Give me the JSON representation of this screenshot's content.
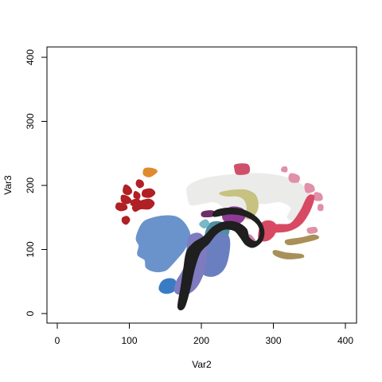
{
  "chart_data": {
    "type": "scatter",
    "title": "",
    "xlabel": "Var2",
    "ylabel": "Var3",
    "xlim": [
      0,
      400
    ],
    "ylim": [
      0,
      400
    ],
    "xticks": [
      0,
      100,
      200,
      300,
      400
    ],
    "yticks": [
      0,
      100,
      200,
      300,
      400
    ],
    "grid": false,
    "legend": "none",
    "regions": [
      {
        "name": "region-orange",
        "color": "#e08a2e",
        "points": [
          [
            122,
            226
          ],
          [
            132,
            226
          ],
          [
            138,
            222
          ],
          [
            132,
            216
          ],
          [
            126,
            214
          ],
          [
            120,
            218
          ]
        ]
      },
      {
        "name": "region-red-1",
        "color": "#b02024",
        "points": [
          [
            94,
            200
          ],
          [
            100,
            197
          ],
          [
            103,
            190
          ],
          [
            98,
            186
          ],
          [
            92,
            190
          ]
        ]
      },
      {
        "name": "region-red-2",
        "color": "#b02024",
        "points": [
          [
            112,
            208
          ],
          [
            118,
            206
          ],
          [
            119,
            200
          ],
          [
            114,
            197
          ],
          [
            110,
            202
          ]
        ]
      },
      {
        "name": "region-red-3",
        "color": "#b02024",
        "points": [
          [
            90,
            184
          ],
          [
            98,
            182
          ],
          [
            102,
            176
          ],
          [
            97,
            172
          ],
          [
            90,
            175
          ]
        ]
      },
      {
        "name": "region-red-4",
        "color": "#b02024",
        "points": [
          [
            84,
            172
          ],
          [
            94,
            170
          ],
          [
            96,
            164
          ],
          [
            88,
            161
          ],
          [
            82,
            165
          ]
        ]
      },
      {
        "name": "region-red-5",
        "color": "#b02024",
        "points": [
          [
            108,
            190
          ],
          [
            114,
            186
          ],
          [
            113,
            180
          ],
          [
            107,
            182
          ]
        ]
      },
      {
        "name": "region-red-6",
        "color": "#b02024",
        "points": [
          [
            120,
            192
          ],
          [
            130,
            194
          ],
          [
            135,
            188
          ],
          [
            128,
            182
          ],
          [
            119,
            184
          ]
        ]
      },
      {
        "name": "region-red-7",
        "color": "#b02024",
        "points": [
          [
            104,
            176
          ],
          [
            112,
            178
          ],
          [
            116,
            172
          ],
          [
            110,
            168
          ],
          [
            103,
            170
          ]
        ]
      },
      {
        "name": "region-red-8",
        "color": "#b02024",
        "points": [
          [
            118,
            176
          ],
          [
            128,
            178
          ],
          [
            134,
            172
          ],
          [
            128,
            164
          ],
          [
            116,
            164
          ],
          [
            108,
            160
          ],
          [
            105,
            166
          ],
          [
            112,
            172
          ]
        ]
      },
      {
        "name": "region-red-9",
        "color": "#b02024",
        "points": [
          [
            91,
            149
          ],
          [
            97,
            151
          ],
          [
            100,
            146
          ],
          [
            96,
            140
          ],
          [
            91,
            143
          ]
        ]
      },
      {
        "name": "region-white-matter",
        "color": "#ebebe9",
        "points": [
          [
            182,
            198
          ],
          [
            204,
            210
          ],
          [
            240,
            216
          ],
          [
            280,
            218
          ],
          [
            310,
            214
          ],
          [
            334,
            204
          ],
          [
            350,
            188
          ],
          [
            353,
            170
          ],
          [
            345,
            156
          ],
          [
            330,
            147
          ],
          [
            320,
            150
          ],
          [
            325,
            165
          ],
          [
            310,
            175
          ],
          [
            288,
            172
          ],
          [
            270,
            172
          ],
          [
            260,
            158
          ],
          [
            245,
            155
          ],
          [
            232,
            166
          ],
          [
            218,
            175
          ],
          [
            200,
            172
          ],
          [
            186,
            170
          ],
          [
            182,
            180
          ]
        ]
      },
      {
        "name": "region-olive",
        "color": "#c8c281",
        "points": [
          [
            226,
            188
          ],
          [
            244,
            192
          ],
          [
            262,
            192
          ],
          [
            275,
            184
          ],
          [
            278,
            165
          ],
          [
            270,
            150
          ],
          [
            262,
            150
          ],
          [
            264,
            165
          ],
          [
            260,
            178
          ],
          [
            250,
            184
          ],
          [
            235,
            184
          ]
        ]
      },
      {
        "name": "region-magenta",
        "color": "#8e3b97",
        "points": [
          [
            232,
            160
          ],
          [
            244,
            166
          ],
          [
            258,
            162
          ],
          [
            260,
            150
          ],
          [
            250,
            140
          ],
          [
            236,
            142
          ],
          [
            230,
            150
          ]
        ]
      },
      {
        "name": "region-plum",
        "color": "#6d2e6a",
        "points": [
          [
            202,
            158
          ],
          [
            214,
            160
          ],
          [
            222,
            156
          ],
          [
            214,
            152
          ],
          [
            202,
            152
          ]
        ]
      },
      {
        "name": "region-pink-small",
        "color": "#d07fae",
        "points": [
          [
            262,
            120
          ],
          [
            266,
            112
          ],
          [
            272,
            108
          ],
          [
            275,
            112
          ],
          [
            268,
            122
          ]
        ]
      },
      {
        "name": "region-pink-top",
        "color": "#d0506b",
        "points": [
          [
            248,
            232
          ],
          [
            264,
            232
          ],
          [
            265,
            220
          ],
          [
            250,
            218
          ],
          [
            247,
            226
          ]
        ]
      },
      {
        "name": "region-pink-dot",
        "color": "#e090a8",
        "points": [
          [
            313,
            228
          ],
          [
            318,
            228
          ],
          [
            318,
            222
          ],
          [
            312,
            223
          ]
        ]
      },
      {
        "name": "region-rose-1",
        "color": "#e090a8",
        "points": [
          [
            325,
            218
          ],
          [
            335,
            214
          ],
          [
            334,
            206
          ],
          [
            325,
            206
          ],
          [
            322,
            212
          ]
        ]
      },
      {
        "name": "region-rose-2",
        "color": "#e090a8",
        "points": [
          [
            345,
            202
          ],
          [
            354,
            200
          ],
          [
            356,
            192
          ],
          [
            346,
            190
          ]
        ]
      },
      {
        "name": "region-rose-3",
        "color": "#e090a8",
        "points": [
          [
            358,
            188
          ],
          [
            366,
            186
          ],
          [
            367,
            178
          ],
          [
            358,
            178
          ]
        ]
      },
      {
        "name": "region-rose-4",
        "color": "#e090a8",
        "points": [
          [
            363,
            169
          ],
          [
            368,
            169
          ],
          [
            368,
            162
          ],
          [
            363,
            162
          ]
        ]
      },
      {
        "name": "region-rose-5",
        "color": "#e090a8",
        "points": [
          [
            348,
            132
          ],
          [
            358,
            134
          ],
          [
            360,
            128
          ],
          [
            350,
            126
          ]
        ]
      },
      {
        "name": "region-crimson-1",
        "color": "#d84a63",
        "points": [
          [
            284,
            140
          ],
          [
            296,
            144
          ],
          [
            304,
            136
          ],
          [
            300,
            122
          ],
          [
            290,
            114
          ],
          [
            280,
            118
          ]
        ]
      },
      {
        "name": "region-crimson-2",
        "color": "#d84a63",
        "points": [
          [
            300,
            128
          ],
          [
            322,
            130
          ],
          [
            338,
            140
          ],
          [
            350,
            160
          ],
          [
            356,
            182
          ],
          [
            348,
            182
          ],
          [
            338,
            160
          ],
          [
            324,
            140
          ],
          [
            304,
            138
          ]
        ]
      },
      {
        "name": "region-tan-1",
        "color": "#a89058",
        "points": [
          [
            318,
            114
          ],
          [
            340,
            118
          ],
          [
            356,
            122
          ],
          [
            362,
            118
          ],
          [
            344,
            112
          ],
          [
            322,
            108
          ]
        ]
      },
      {
        "name": "region-tan-2",
        "color": "#a89058",
        "points": [
          [
            302,
            98
          ],
          [
            318,
            94
          ],
          [
            338,
            92
          ],
          [
            340,
            88
          ],
          [
            318,
            86
          ],
          [
            302,
            92
          ]
        ]
      },
      {
        "name": "region-cerebellum",
        "color": "#6b93cb",
        "points": [
          [
            118,
            140
          ],
          [
            130,
            148
          ],
          [
            150,
            152
          ],
          [
            166,
            150
          ],
          [
            178,
            138
          ],
          [
            184,
            120
          ],
          [
            176,
            100
          ],
          [
            166,
            86
          ],
          [
            158,
            76
          ],
          [
            150,
            68
          ],
          [
            136,
            66
          ],
          [
            124,
            72
          ],
          [
            122,
            84
          ],
          [
            112,
            92
          ],
          [
            114,
            106
          ],
          [
            110,
            118
          ]
        ]
      },
      {
        "name": "region-blue-dark",
        "color": "#3a7cc4",
        "points": [
          [
            146,
            50
          ],
          [
            156,
            54
          ],
          [
            164,
            50
          ],
          [
            162,
            36
          ],
          [
            150,
            32
          ],
          [
            142,
            38
          ]
        ]
      },
      {
        "name": "region-teal",
        "color": "#4f8fa2",
        "points": [
          [
            212,
            140
          ],
          [
            228,
            142
          ],
          [
            238,
            132
          ],
          [
            232,
            114
          ],
          [
            216,
            110
          ],
          [
            206,
            120
          ]
        ]
      },
      {
        "name": "region-light-teal",
        "color": "#79b7c9",
        "points": [
          [
            198,
            140
          ],
          [
            206,
            146
          ],
          [
            210,
            140
          ],
          [
            204,
            134
          ]
        ]
      },
      {
        "name": "region-slate",
        "color": "#6a7fc0",
        "points": [
          [
            210,
            122
          ],
          [
            230,
            124
          ],
          [
            238,
            118
          ],
          [
            238,
            96
          ],
          [
            232,
            72
          ],
          [
            220,
            60
          ],
          [
            206,
            60
          ],
          [
            196,
            72
          ],
          [
            196,
            96
          ],
          [
            200,
            112
          ]
        ]
      },
      {
        "name": "region-lavender",
        "color": "#7e7bc0",
        "points": [
          [
            184,
            120
          ],
          [
            198,
            124
          ],
          [
            206,
            108
          ],
          [
            206,
            80
          ],
          [
            200,
            56
          ],
          [
            190,
            38
          ],
          [
            176,
            30
          ],
          [
            164,
            34
          ],
          [
            166,
            50
          ],
          [
            176,
            70
          ],
          [
            180,
            96
          ]
        ]
      },
      {
        "name": "region-black",
        "color": "#1f1f1f",
        "points": [
          [
            218,
            152
          ],
          [
            240,
            156
          ],
          [
            262,
            152
          ],
          [
            278,
            140
          ],
          [
            282,
            124
          ],
          [
            276,
            112
          ],
          [
            266,
            118
          ],
          [
            262,
            132
          ],
          [
            248,
            142
          ],
          [
            230,
            142
          ],
          [
            216,
            134
          ],
          [
            204,
            120
          ],
          [
            190,
            110
          ],
          [
            180,
            96
          ],
          [
            176,
            70
          ],
          [
            172,
            40
          ],
          [
            168,
            10
          ],
          [
            176,
            10
          ],
          [
            184,
            40
          ],
          [
            190,
            70
          ],
          [
            198,
            96
          ],
          [
            210,
            110
          ],
          [
            220,
            124
          ],
          [
            232,
            132
          ],
          [
            246,
            130
          ],
          [
            254,
            120
          ],
          [
            262,
            108
          ],
          [
            272,
            104
          ],
          [
            284,
            114
          ],
          [
            286,
            132
          ],
          [
            276,
            150
          ],
          [
            256,
            162
          ],
          [
            236,
            164
          ],
          [
            220,
            160
          ]
        ]
      }
    ]
  }
}
